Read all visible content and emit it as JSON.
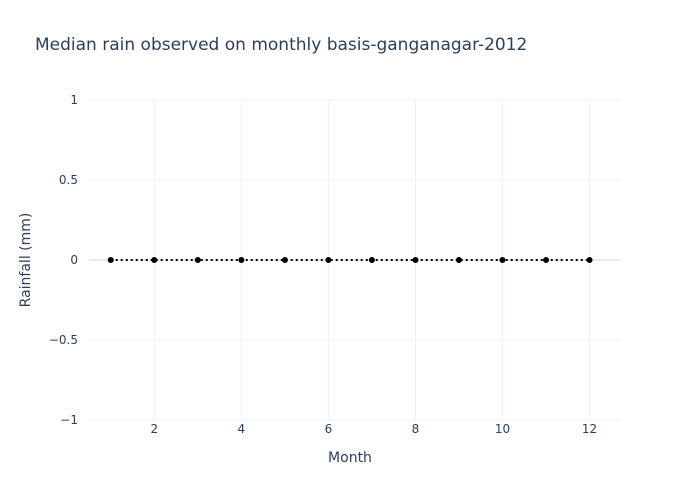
{
  "chart_data": {
    "type": "line",
    "title": "Median rain observed on monthly basis-ganganagar-2012",
    "xlabel": "Month",
    "ylabel": "Rainfall (mm)",
    "x": [
      1,
      2,
      3,
      4,
      5,
      6,
      7,
      8,
      9,
      10,
      11,
      12
    ],
    "series": [
      {
        "values": [
          0,
          0,
          0,
          0,
          0,
          0,
          0,
          0,
          0,
          0,
          0,
          0
        ]
      }
    ],
    "xlim": [
      0.5,
      12.7
    ],
    "ylim": [
      -1,
      1
    ],
    "x_ticks": [
      2,
      4,
      6,
      8,
      10,
      12
    ],
    "x_tick_labels": [
      "2",
      "4",
      "6",
      "8",
      "10",
      "12"
    ],
    "y_ticks": [
      1,
      0.5,
      0,
      -0.5,
      -1
    ],
    "y_tick_labels": [
      "1",
      "0.5",
      "0",
      "−0.5",
      "−1"
    ],
    "grid": true,
    "line_style": "dotted",
    "marker": "circle",
    "colors": {
      "background": "#ffffff",
      "grid": "#ebf0f8",
      "text": "#2a3f5f",
      "series": "#000000"
    }
  }
}
